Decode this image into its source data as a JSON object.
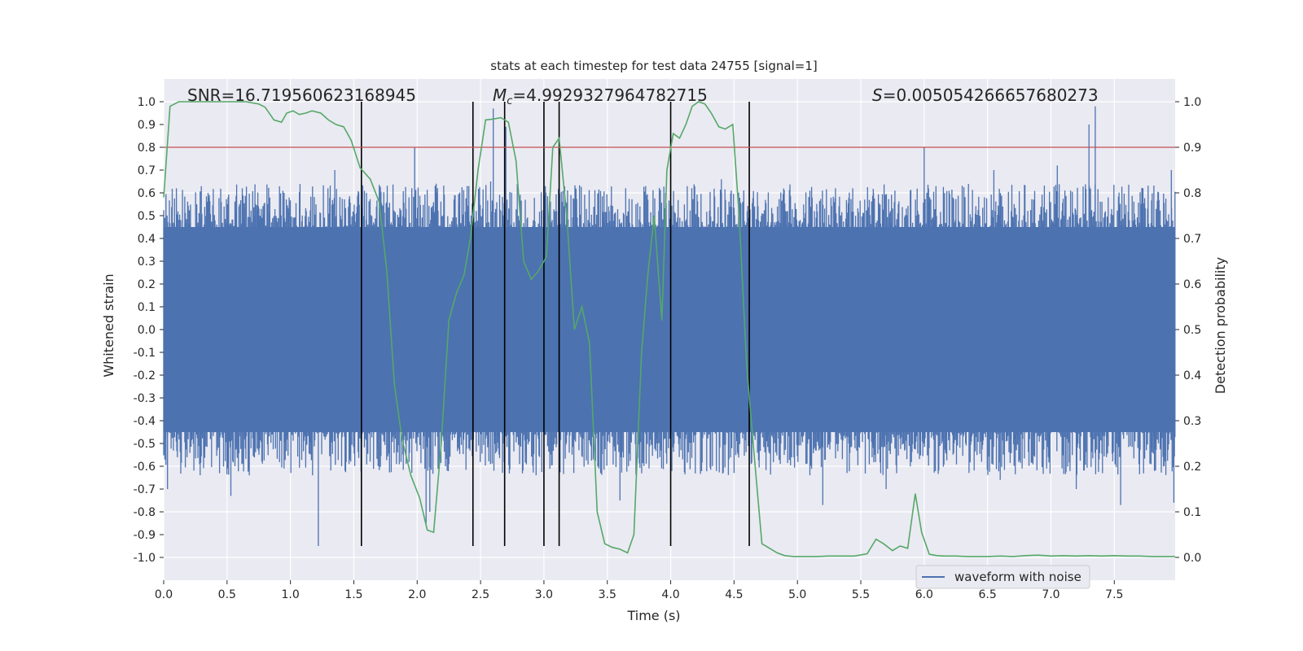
{
  "chart_data": {
    "type": "line",
    "title": "stats at each timestep for test data 24755 [signal=1]",
    "xlabel": "Time (s)",
    "ylabel_left": "Whitened strain",
    "ylabel_right": "Detection probability",
    "xlim": [
      0,
      7.98
    ],
    "ylim_left": [
      -1.1,
      1.1
    ],
    "ylim_right": [
      -0.05,
      1.05
    ],
    "x_ticks": [
      "0.0",
      "0.5",
      "1.0",
      "1.5",
      "2.0",
      "2.5",
      "3.0",
      "3.5",
      "4.0",
      "4.5",
      "5.0",
      "5.5",
      "6.0",
      "6.5",
      "7.0",
      "7.5"
    ],
    "y_left_ticks": [
      "1.0",
      "0.9",
      "0.8",
      "0.7",
      "0.6",
      "0.5",
      "0.4",
      "0.3",
      "0.2",
      "0.1",
      "0.0",
      "-0.1",
      "-0.2",
      "-0.3",
      "-0.4",
      "-0.5",
      "-0.6",
      "-0.7",
      "-0.8",
      "-0.9",
      "-1.0"
    ],
    "y_right_ticks": [
      "1.0",
      "0.9",
      "0.8",
      "0.7",
      "0.6",
      "0.5",
      "0.4",
      "0.3",
      "0.2",
      "0.1",
      "0.0"
    ],
    "grid": true,
    "legend": {
      "location": "lower-right",
      "entries": [
        "waveform with noise"
      ]
    },
    "annotations": {
      "snr": "SNR=16.719560623168945",
      "mc_symbol": "M",
      "mc_sub": "c",
      "mc_value": "=4.9929327964782715",
      "s_symbol": "S",
      "s_value": "=0.005054266657680273"
    },
    "threshold": 0.9,
    "vertical_lines_s": [
      1.56,
      2.44,
      2.69,
      3.0,
      3.12,
      4.0,
      4.62
    ],
    "waveform": {
      "name": "waveform with noise",
      "dense_band": [
        -0.45,
        0.45
      ],
      "max_spikes": [
        [
          0.1,
          0.62
        ],
        [
          0.35,
          0.6
        ],
        [
          0.62,
          0.62
        ],
        [
          0.95,
          0.6
        ],
        [
          1.35,
          0.7
        ],
        [
          1.6,
          0.6
        ],
        [
          1.98,
          0.8
        ],
        [
          2.15,
          0.64
        ],
        [
          2.58,
          0.65
        ],
        [
          2.6,
          0.97
        ],
        [
          2.7,
          0.89
        ],
        [
          3.25,
          0.62
        ],
        [
          3.96,
          0.6
        ],
        [
          4.4,
          0.66
        ],
        [
          5.3,
          0.62
        ],
        [
          5.6,
          0.6
        ],
        [
          6.0,
          0.8
        ],
        [
          6.55,
          0.7
        ],
        [
          7.05,
          0.72
        ],
        [
          7.3,
          0.9
        ],
        [
          7.35,
          0.98
        ],
        [
          7.95,
          0.7
        ]
      ],
      "min_spikes": [
        [
          0.03,
          -0.7
        ],
        [
          0.53,
          -0.73
        ],
        [
          1.22,
          -0.95
        ],
        [
          2.07,
          -0.85
        ],
        [
          2.1,
          -0.8
        ],
        [
          3.6,
          -0.75
        ],
        [
          5.2,
          -0.77
        ],
        [
          5.7,
          -0.7
        ],
        [
          6.6,
          -0.66
        ],
        [
          7.2,
          -0.7
        ],
        [
          7.55,
          -0.77
        ],
        [
          7.97,
          -0.76
        ]
      ]
    },
    "detection_probability": {
      "name": "Detection probability",
      "x": [
        0,
        0.05,
        0.12,
        0.25,
        0.4,
        0.55,
        0.65,
        0.75,
        0.8,
        0.87,
        0.93,
        0.97,
        1.02,
        1.07,
        1.12,
        1.17,
        1.24,
        1.3,
        1.36,
        1.42,
        1.48,
        1.55,
        1.63,
        1.7,
        1.76,
        1.82,
        1.88,
        1.95,
        2.02,
        2.08,
        2.13,
        2.19,
        2.25,
        2.31,
        2.37,
        2.42,
        2.48,
        2.54,
        2.6,
        2.66,
        2.72,
        2.78,
        2.84,
        2.9,
        2.96,
        3.02,
        3.07,
        3.12,
        3.18,
        3.24,
        3.3,
        3.36,
        3.42,
        3.48,
        3.54,
        3.6,
        3.66,
        3.71,
        3.77,
        3.82,
        3.87,
        3.93,
        3.97,
        4.02,
        4.07,
        4.12,
        4.17,
        4.22,
        4.27,
        4.32,
        4.38,
        4.43,
        4.49,
        4.54,
        4.6,
        4.66,
        4.72,
        4.78,
        4.84,
        4.9,
        4.97,
        5.05,
        5.15,
        5.25,
        5.35,
        5.45,
        5.55,
        5.62,
        5.68,
        5.75,
        5.81,
        5.87,
        5.93,
        5.98,
        6.04,
        6.1,
        6.16,
        6.25,
        6.35,
        6.5,
        6.6,
        6.7,
        6.8,
        6.9,
        7.0,
        7.1,
        7.2,
        7.3,
        7.4,
        7.5,
        7.6,
        7.7,
        7.8,
        7.98
      ],
      "y": [
        0.79,
        0.99,
        1.0,
        1.0,
        1.0,
        1.0,
        1.0,
        0.995,
        0.988,
        0.96,
        0.955,
        0.975,
        0.98,
        0.972,
        0.975,
        0.98,
        0.975,
        0.96,
        0.95,
        0.945,
        0.915,
        0.855,
        0.83,
        0.78,
        0.63,
        0.38,
        0.26,
        0.18,
        0.13,
        0.06,
        0.055,
        0.25,
        0.52,
        0.58,
        0.62,
        0.7,
        0.85,
        0.96,
        0.962,
        0.965,
        0.955,
        0.87,
        0.65,
        0.61,
        0.63,
        0.66,
        0.9,
        0.92,
        0.75,
        0.5,
        0.55,
        0.47,
        0.1,
        0.03,
        0.022,
        0.018,
        0.01,
        0.05,
        0.45,
        0.62,
        0.75,
        0.52,
        0.85,
        0.93,
        0.92,
        0.95,
        0.99,
        1.0,
        0.995,
        0.975,
        0.945,
        0.94,
        0.95,
        0.75,
        0.42,
        0.22,
        0.03,
        0.02,
        0.01,
        0.004,
        0.002,
        0.002,
        0.002,
        0.003,
        0.003,
        0.003,
        0.008,
        0.04,
        0.03,
        0.015,
        0.025,
        0.02,
        0.14,
        0.055,
        0.007,
        0.004,
        0.003,
        0.003,
        0.002,
        0.002,
        0.003,
        0.002,
        0.004,
        0.005,
        0.003,
        0.004,
        0.003,
        0.004,
        0.003,
        0.004,
        0.003,
        0.003,
        0.002,
        0.002
      ]
    }
  }
}
